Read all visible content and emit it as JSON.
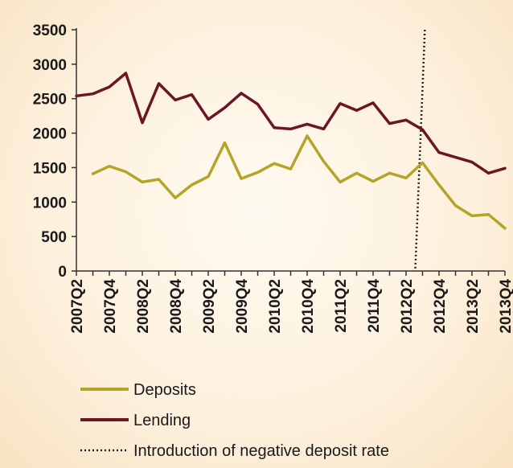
{
  "chart_data": {
    "type": "line",
    "x": [
      "2007Q2",
      "2007Q3",
      "2007Q4",
      "2008Q1",
      "2008Q2",
      "2008Q3",
      "2008Q4",
      "2009Q1",
      "2009Q2",
      "2009Q3",
      "2009Q4",
      "2010Q1",
      "2010Q2",
      "2010Q3",
      "2010Q4",
      "2011Q1",
      "2011Q2",
      "2011Q3",
      "2011Q4",
      "2012Q1",
      "2012Q2",
      "2012Q3",
      "2012Q4",
      "2013Q1",
      "2013Q2",
      "2013Q3",
      "2013Q4"
    ],
    "x_tick_labels": [
      "2007Q2",
      "2007Q4",
      "2008Q2",
      "2008Q4",
      "2009Q2",
      "2009Q4",
      "2010Q2",
      "2010Q4",
      "2011Q2",
      "2011Q4",
      "2012Q2",
      "2012Q4",
      "2013Q2",
      "2013Q4"
    ],
    "series": [
      {
        "name": "Deposits",
        "color": "#b5a42a",
        "values": [
          null,
          1410,
          1520,
          1440,
          1290,
          1330,
          1060,
          1250,
          1370,
          1860,
          1340,
          1430,
          1560,
          1480,
          1960,
          1590,
          1290,
          1420,
          1300,
          1420,
          1350,
          1570,
          1250,
          950,
          800,
          820,
          620
        ]
      },
      {
        "name": "Lending",
        "color": "#6b1622",
        "values": [
          2540,
          2570,
          2670,
          2870,
          2150,
          2720,
          2480,
          2560,
          2200,
          2370,
          2580,
          2420,
          2080,
          2060,
          2130,
          2060,
          2430,
          2330,
          2440,
          2140,
          2190,
          2050,
          1720,
          1650,
          1580,
          1420,
          1490
        ]
      }
    ],
    "vline": {
      "name": "Introduction of negative deposit rate",
      "x": "2012Q3",
      "position": 20.75
    },
    "ylim": [
      0,
      3500
    ],
    "yticks": [
      0,
      500,
      1000,
      1500,
      2000,
      2500,
      3000,
      3500
    ],
    "grid": false,
    "legend_position": "bottom-left",
    "legend": [
      "Deposits",
      "Lending",
      "Introduction of negative deposit rate"
    ]
  }
}
